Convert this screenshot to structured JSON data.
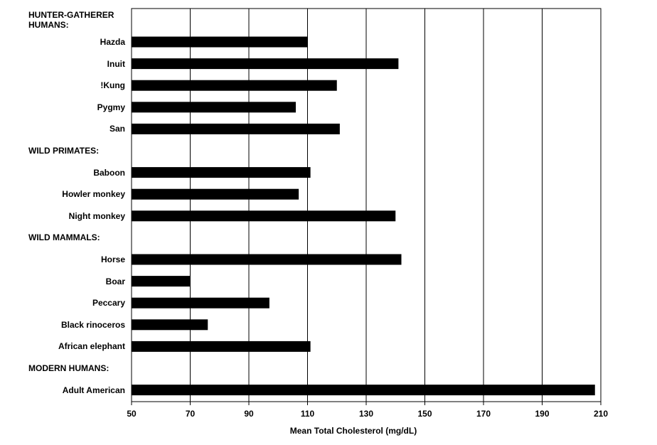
{
  "chart_data": {
    "type": "bar",
    "orientation": "horizontal",
    "x_label": "Mean Total Cholesterol (mg/dL)",
    "categories": [
      "HUNTER-GATHERER HUMANS:",
      "Hazda",
      "Inuit",
      "!Kung",
      "Pygmy",
      "San",
      "WILD PRIMATES:",
      "Baboon",
      "Howler monkey",
      "Night monkey",
      "WILD MAMMALS:",
      "Horse",
      "Boar",
      "Peccary",
      "Black rinoceros",
      "African elephant",
      "MODERN HUMANS:",
      "Adult American"
    ],
    "values": [
      null,
      110,
      141,
      120,
      106,
      121,
      null,
      111,
      107,
      140,
      null,
      142,
      70,
      97,
      76,
      111,
      null,
      208
    ],
    "color": "#000000",
    "xlim": [
      50,
      210
    ],
    "xticks": [
      50,
      70,
      90,
      110,
      130,
      150,
      170,
      190,
      210
    ],
    "grid": true
  }
}
